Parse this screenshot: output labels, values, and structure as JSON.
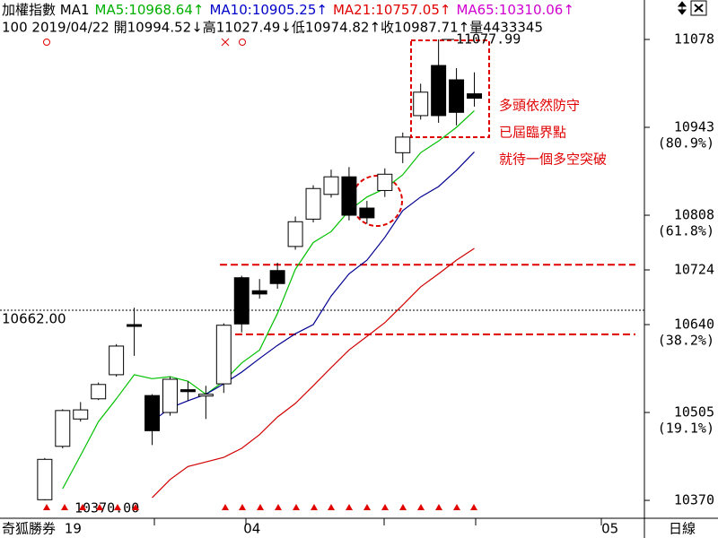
{
  "header": {
    "items": [
      {
        "text": "加權指數 MA1",
        "color": "#000000"
      },
      {
        "text": "MA5:10968.64↑",
        "color": "#00b000"
      },
      {
        "text": "MA10:10905.25↑",
        "color": "#0000c8"
      },
      {
        "text": "MA21:10757.05↑",
        "color": "#e00000"
      },
      {
        "text": "MA65:10310.06↑",
        "color": "#d000d0"
      }
    ],
    "quote": "100 2019/04/22 開10994.52↓高11027.49↓低10974.82↑收10987.71↑量4433345"
  },
  "chart_data": {
    "type": "candlestick",
    "categories": [
      null,
      null,
      null,
      "19",
      null,
      null,
      null,
      null,
      null,
      null,
      null,
      null,
      null,
      "04",
      null,
      null,
      null,
      null,
      null,
      null,
      null,
      null,
      null,
      null,
      null,
      null,
      null,
      null,
      null,
      null,
      null,
      null,
      null,
      "05",
      null,
      null
    ],
    "open": [
      null,
      null,
      10371,
      10453,
      10495,
      10526,
      10563,
      10640,
      10531,
      10505,
      10540,
      10531,
      10549,
      10712,
      10692,
      10723,
      10760,
      10802,
      10840,
      10867,
      10819,
      10846,
      10904,
      10961,
      11038,
      11016,
      10994.52,
      null,
      null,
      null,
      null,
      null,
      null,
      null,
      null,
      null
    ],
    "high": [
      null,
      null,
      10435,
      10510,
      10521,
      10551,
      10610,
      10666,
      10533,
      10560,
      10553,
      10546,
      10642,
      10715,
      10710,
      10735,
      10806,
      10854,
      10878,
      10882,
      10830,
      10880,
      10935,
      11010,
      11077.99,
      11034,
      11027.49,
      null,
      null,
      null,
      null,
      null,
      null,
      null,
      null,
      null
    ],
    "low": [
      null,
      null,
      10370,
      10450,
      10491,
      10524,
      10560,
      10592,
      10455,
      10500,
      10523,
      10495,
      10535,
      10628,
      10680,
      10695,
      10755,
      10797,
      10835,
      10800,
      10795,
      10836,
      10888,
      10955,
      10950,
      10946,
      10974.82,
      null,
      null,
      null,
      null,
      null,
      null,
      null,
      null,
      null
    ],
    "close": [
      null,
      null,
      10433,
      10508,
      10509,
      10548,
      10607,
      10638,
      10477,
      10556,
      10537,
      10533,
      10639,
      10641,
      10687,
      10703,
      10798,
      10849,
      10867,
      10808,
      10804,
      10871,
      10928,
      10997,
      10961,
      10966,
      10987.71,
      null,
      null,
      null,
      null,
      null,
      null,
      null,
      null,
      null
    ],
    "up_color": "#ffffff",
    "down_color": "#000000",
    "lines": [
      {
        "color": "#00c000",
        "values": [
          null,
          null,
          null,
          10388,
          10439,
          10491,
          10526,
          10563,
          10557,
          10560,
          10553,
          10533,
          10553,
          10581,
          10601,
          10657,
          10725,
          10766,
          10783,
          10815,
          10836,
          10849,
          10870,
          10904,
          10922,
          10943,
          10968.64,
          null,
          null,
          null,
          null,
          null,
          null,
          null,
          null,
          null
        ]
      },
      {
        "color": "#000090",
        "values": [
          null,
          null,
          null,
          null,
          null,
          null,
          null,
          null,
          10491,
          10512,
          10523,
          10533,
          10549,
          10567,
          10588,
          10608,
          10626,
          10640,
          10684,
          10718,
          10739,
          10774,
          10815,
          10836,
          10852,
          10877,
          10905.25,
          null,
          null,
          null,
          null,
          null,
          null,
          null,
          null,
          null
        ]
      },
      {
        "color": "#d00000",
        "values": [
          null,
          null,
          null,
          null,
          null,
          null,
          null,
          null,
          10374,
          10402,
          10422,
          10429,
          10436,
          10450,
          10471,
          10498,
          10519,
          10546,
          10574,
          10601,
          10622,
          10643,
          10670,
          10698,
          10718,
          10739,
          10757.05,
          null,
          null,
          null,
          null,
          null,
          null,
          null,
          null,
          null
        ]
      }
    ],
    "ylim": [
      10342.5,
      11083.5
    ],
    "yticks": [
      11078,
      10943,
      10808,
      10724,
      10640,
      10505,
      10370
    ],
    "ratio_labels": [
      {
        "value": 10943,
        "label": "(80.9%)"
      },
      {
        "value": 10808,
        "label": "(61.8%)"
      },
      {
        "value": 10640,
        "label": "(38.2%)"
      },
      {
        "value": 10505,
        "label": "(19.1%)"
      }
    ],
    "hlines": [
      {
        "value": 10662,
        "label": "10662.00",
        "color": "#000000",
        "style": "dotted"
      },
      {
        "value": 10732,
        "color": "#e00000",
        "style": "dashed"
      },
      {
        "value": 10625,
        "color": "#e00000",
        "style": "dashed"
      }
    ],
    "point_labels": [
      {
        "value": 11077.99,
        "label": "11077.99"
      },
      {
        "value": 10370,
        "label": "10370.00"
      }
    ],
    "annotation": [
      "多頭依然防守",
      "已屆臨界點",
      "就待一個多空突破"
    ],
    "source": "奇狐勝券",
    "period": "日線"
  }
}
